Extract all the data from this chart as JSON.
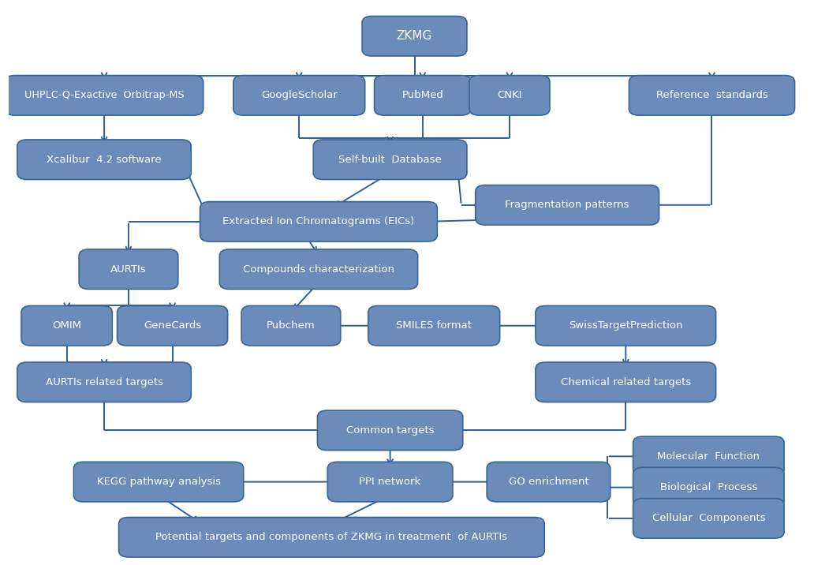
{
  "bg_color": "#ffffff",
  "box_fill": "#6b8cba",
  "box_fill2": "#7b9cc8",
  "box_edge": "#3a6494",
  "text_color": "#ffffff",
  "arrow_color": "#2e5f9a",
  "nodes": {
    "ZKMG": [
      0.5,
      0.945,
      0.105,
      0.048
    ],
    "UHPLC": [
      0.118,
      0.838,
      0.22,
      0.048
    ],
    "GoogleScholar": [
      0.358,
      0.838,
      0.138,
      0.048
    ],
    "PubMed": [
      0.51,
      0.838,
      0.095,
      0.048
    ],
    "CNKI": [
      0.617,
      0.838,
      0.075,
      0.048
    ],
    "Reference_standards": [
      0.866,
      0.838,
      0.18,
      0.048
    ],
    "Xcalibur": [
      0.118,
      0.722,
      0.19,
      0.048
    ],
    "Self_built_Database": [
      0.47,
      0.722,
      0.165,
      0.048
    ],
    "Fragmentation_patterns": [
      0.688,
      0.64,
      0.202,
      0.048
    ],
    "EIC": [
      0.382,
      0.61,
      0.268,
      0.048
    ],
    "AURTIs": [
      0.148,
      0.524,
      0.098,
      0.048
    ],
    "Compounds_char": [
      0.382,
      0.524,
      0.22,
      0.048
    ],
    "OMIM": [
      0.072,
      0.422,
      0.088,
      0.048
    ],
    "GeneCards": [
      0.202,
      0.422,
      0.112,
      0.048
    ],
    "Pubchem": [
      0.348,
      0.422,
      0.098,
      0.048
    ],
    "SMILES_format": [
      0.524,
      0.422,
      0.138,
      0.048
    ],
    "SwissTargetPrediction": [
      0.76,
      0.422,
      0.198,
      0.048
    ],
    "AURTIs_related_targets": [
      0.118,
      0.32,
      0.19,
      0.048
    ],
    "Chemical_related_targets": [
      0.76,
      0.32,
      0.198,
      0.048
    ],
    "Common_targets": [
      0.47,
      0.233,
      0.155,
      0.048
    ],
    "KEGG": [
      0.185,
      0.14,
      0.185,
      0.048
    ],
    "PPI_network": [
      0.47,
      0.14,
      0.13,
      0.048
    ],
    "GO_enrichment": [
      0.665,
      0.14,
      0.128,
      0.048
    ],
    "Molecular_Function": [
      0.862,
      0.186,
      0.162,
      0.048
    ],
    "Biological_Process": [
      0.862,
      0.13,
      0.162,
      0.048
    ],
    "Cellular_Components": [
      0.862,
      0.074,
      0.162,
      0.048
    ],
    "Potential_targets": [
      0.398,
      0.04,
      0.5,
      0.048
    ]
  },
  "labels": {
    "ZKMG": "ZKMG",
    "UHPLC": "UHPLC-Q-Exactive  Orbitrap-MS",
    "GoogleScholar": "GoogleScholar",
    "PubMed": "PubMed",
    "CNKI": "CNKI",
    "Reference_standards": "Reference  standards",
    "Xcalibur": "Xcalibur  4.2 software",
    "Self_built_Database": "Self-built  Database",
    "Fragmentation_patterns": "Fragmentation patterns",
    "EIC": "Extracted Ion Chromatograms (EICs)",
    "AURTIs": "AURTIs",
    "Compounds_char": "Compounds characterization",
    "OMIM": "OMIM",
    "GeneCards": "GeneCards",
    "Pubchem": "Pubchem",
    "SMILES_format": "SMILES format",
    "SwissTargetPrediction": "SwissTargetPrediction",
    "AURTIs_related_targets": "AURTIs related targets",
    "Chemical_related_targets": "Chemical related targets",
    "Common_targets": "Common targets",
    "KEGG": "KEGG pathway analysis",
    "PPI_network": "PPI network",
    "GO_enrichment": "GO enrichment",
    "Molecular_Function": "Molecular  Function",
    "Biological_Process": "Biological  Process",
    "Cellular_Components": "Cellular  Components",
    "Potential_targets": "Potential targets and components of ZKMG in treatment  of AURTIs"
  },
  "font_sizes": {
    "ZKMG": 11,
    "UHPLC": 9.2,
    "GoogleScholar": 9.5,
    "PubMed": 9.5,
    "CNKI": 9.5,
    "Reference_standards": 9.5,
    "Xcalibur": 9.5,
    "Self_built_Database": 9.5,
    "Fragmentation_patterns": 9.5,
    "EIC": 9.5,
    "AURTIs": 9.5,
    "Compounds_char": 9.5,
    "OMIM": 9.5,
    "GeneCards": 9.5,
    "Pubchem": 9.5,
    "SMILES_format": 9.5,
    "SwissTargetPrediction": 9.5,
    "AURTIs_related_targets": 9.5,
    "Chemical_related_targets": 9.5,
    "Common_targets": 9.5,
    "KEGG": 9.5,
    "PPI_network": 9.5,
    "GO_enrichment": 9.5,
    "Molecular_Function": 9.5,
    "Biological_Process": 9.5,
    "Cellular_Components": 9.5,
    "Potential_targets": 9.5
  }
}
